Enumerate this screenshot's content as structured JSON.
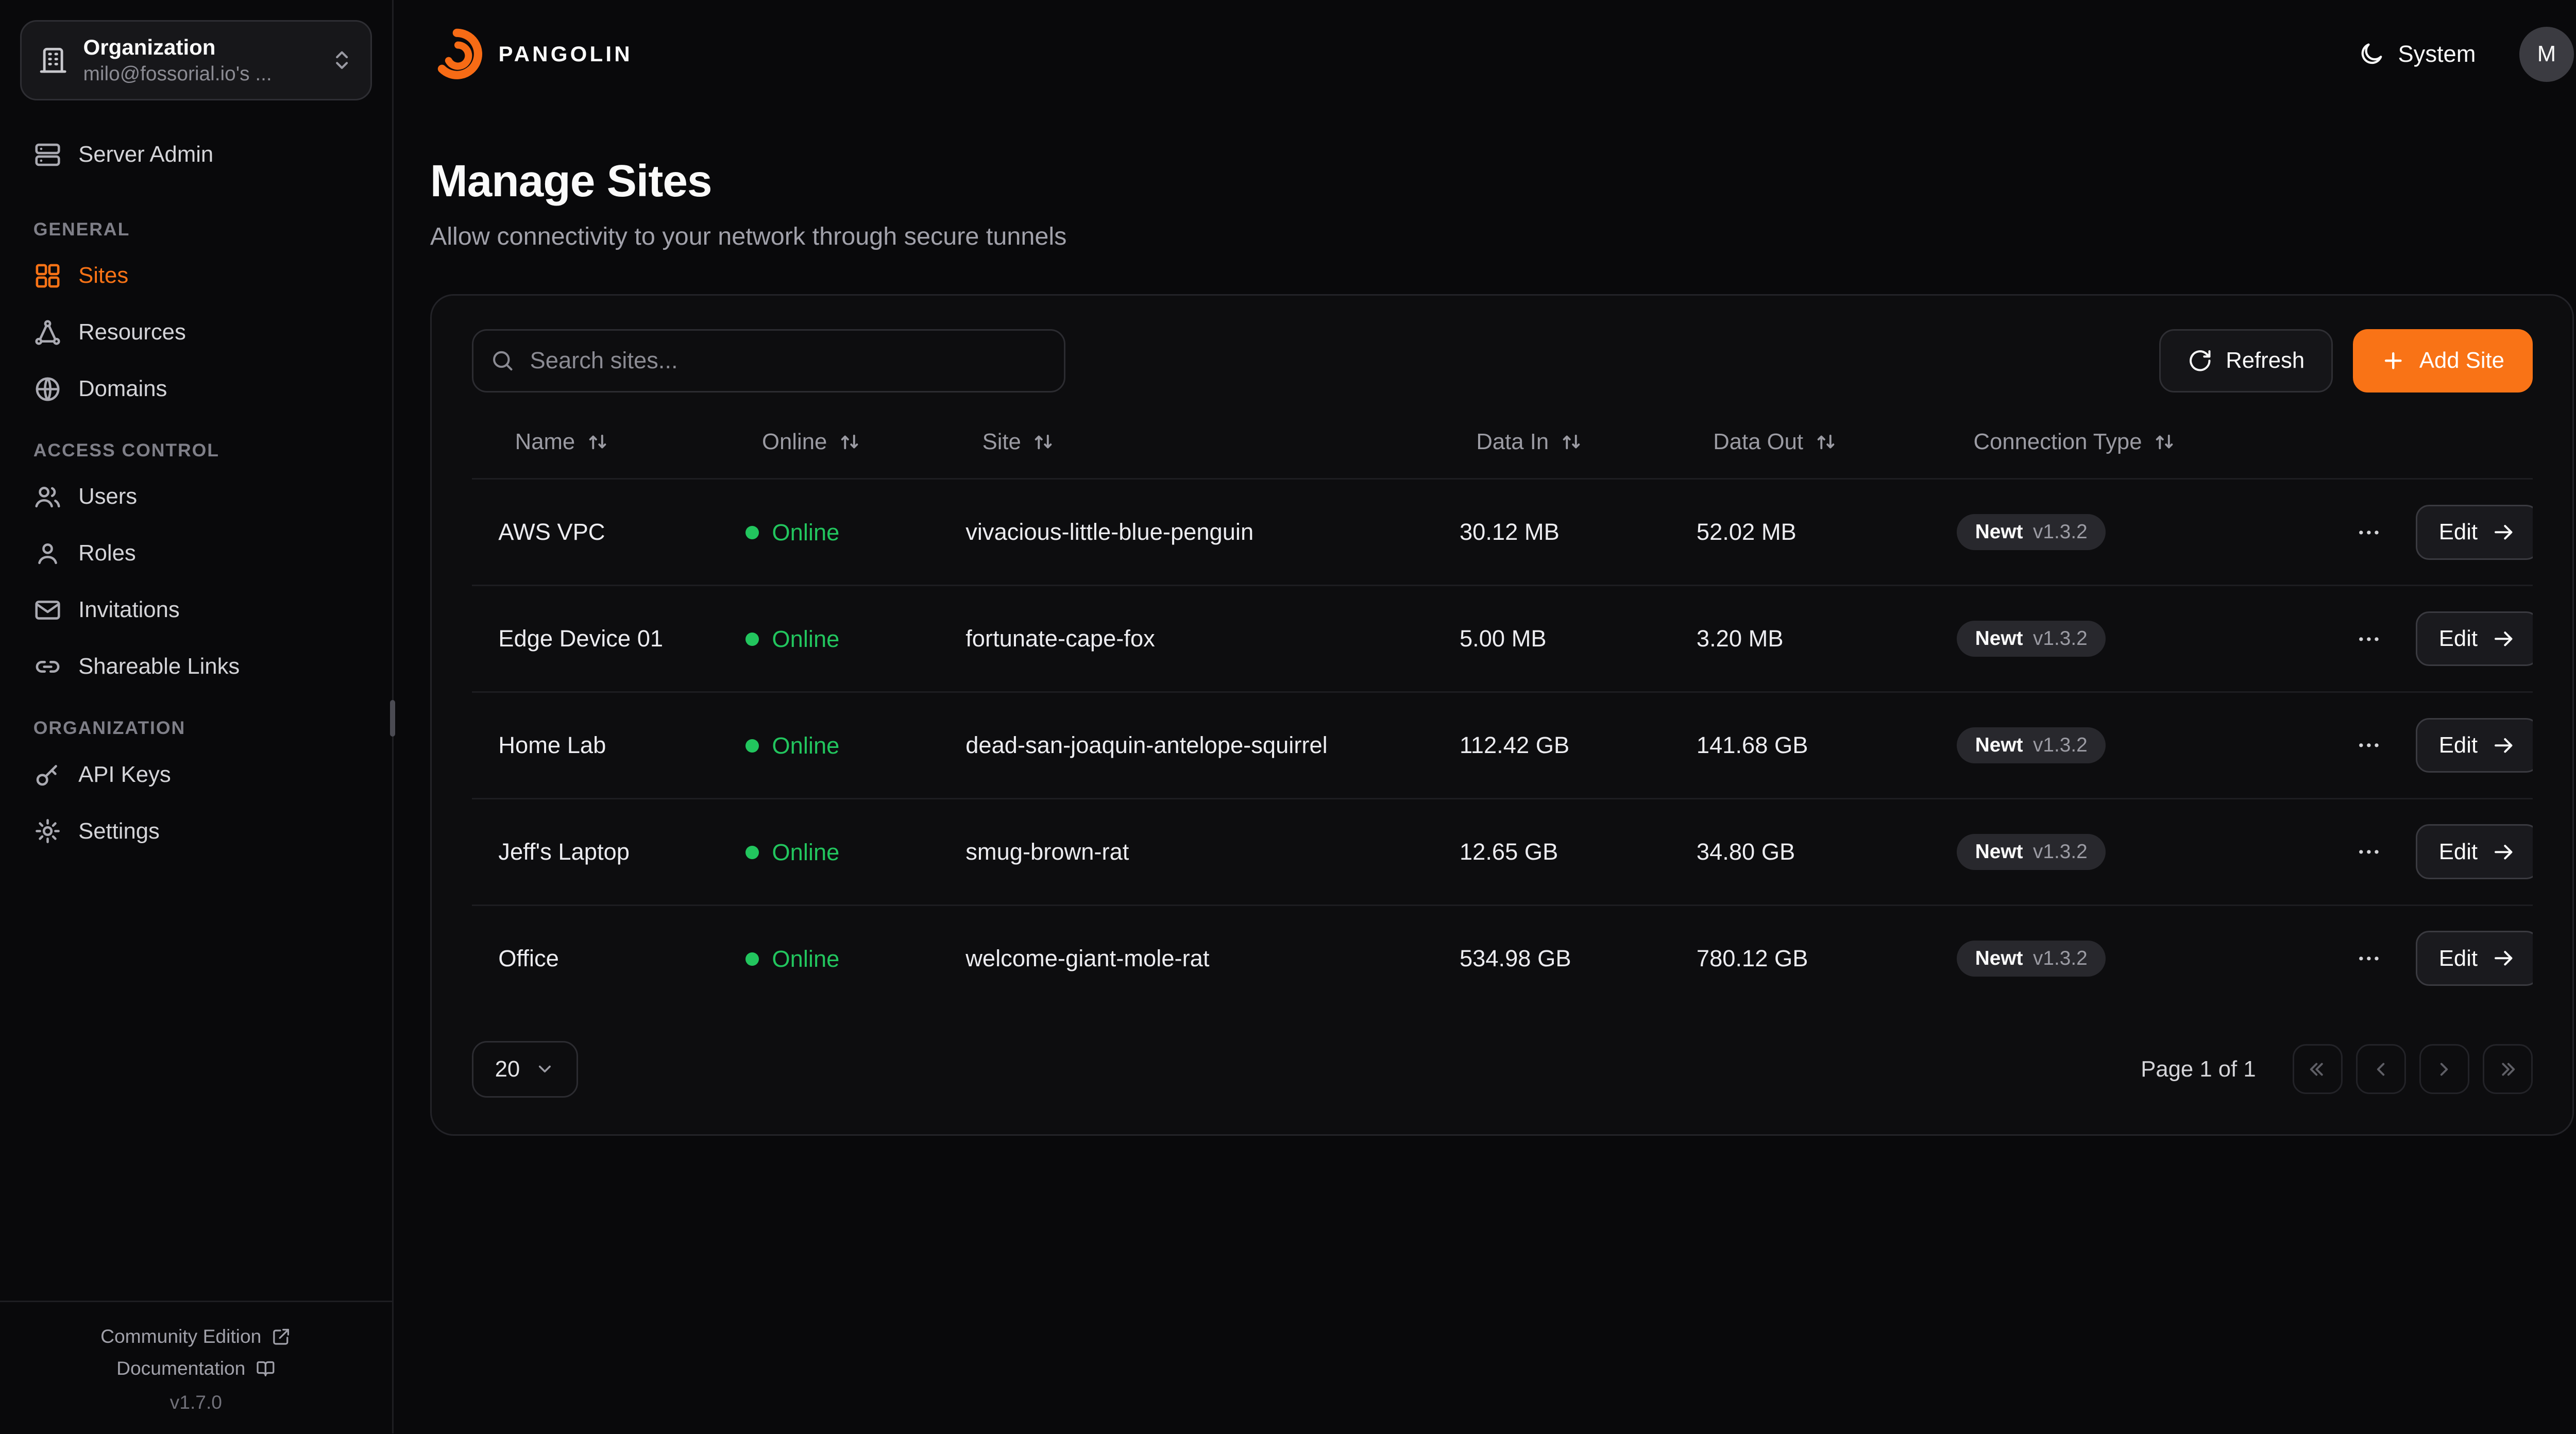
{
  "brand": {
    "name": "PANGOLIN"
  },
  "org_picker": {
    "title": "Organization",
    "subtitle": "milo@fossorial.io's ..."
  },
  "sidebar": {
    "server_admin": "Server Admin",
    "sections": [
      {
        "label": "GENERAL",
        "items": [
          {
            "label": "Sites",
            "icon": "grid-icon",
            "active": true
          },
          {
            "label": "Resources",
            "icon": "waypoints-icon",
            "active": false
          },
          {
            "label": "Domains",
            "icon": "globe-icon",
            "active": false
          }
        ]
      },
      {
        "label": "ACCESS CONTROL",
        "items": [
          {
            "label": "Users",
            "icon": "users-icon",
            "active": false
          },
          {
            "label": "Roles",
            "icon": "user-icon",
            "active": false
          },
          {
            "label": "Invitations",
            "icon": "mail-icon",
            "active": false
          },
          {
            "label": "Shareable Links",
            "icon": "link-icon",
            "active": false
          }
        ]
      },
      {
        "label": "ORGANIZATION",
        "items": [
          {
            "label": "API Keys",
            "icon": "key-icon",
            "active": false
          },
          {
            "label": "Settings",
            "icon": "gear-icon",
            "active": false
          }
        ]
      }
    ],
    "footer": {
      "community_edition": "Community Edition",
      "documentation": "Documentation",
      "version": "v1.7.0"
    }
  },
  "header": {
    "theme": "System",
    "avatar": "M"
  },
  "page": {
    "title": "Manage Sites",
    "subtitle": "Allow connectivity to your network through secure tunnels"
  },
  "toolbar": {
    "search_placeholder": "Search sites...",
    "refresh": "Refresh",
    "add_site": "Add Site"
  },
  "table": {
    "columns": [
      "Name",
      "Online",
      "Site",
      "Data In",
      "Data Out",
      "Connection Type"
    ],
    "edit_label": "Edit",
    "rows": [
      {
        "name": "AWS VPC",
        "status": "Online",
        "site": "vivacious-little-blue-penguin",
        "data_in": "30.12 MB",
        "data_out": "52.02 MB",
        "conn": "Newt",
        "ver": "v1.3.2"
      },
      {
        "name": "Edge Device 01",
        "status": "Online",
        "site": "fortunate-cape-fox",
        "data_in": "5.00 MB",
        "data_out": "3.20 MB",
        "conn": "Newt",
        "ver": "v1.3.2"
      },
      {
        "name": "Home Lab",
        "status": "Online",
        "site": "dead-san-joaquin-antelope-squirrel",
        "data_in": "112.42 GB",
        "data_out": "141.68 GB",
        "conn": "Newt",
        "ver": "v1.3.2"
      },
      {
        "name": "Jeff's Laptop",
        "status": "Online",
        "site": "smug-brown-rat",
        "data_in": "12.65 GB",
        "data_out": "34.80 GB",
        "conn": "Newt",
        "ver": "v1.3.2"
      },
      {
        "name": "Office",
        "status": "Online",
        "site": "welcome-giant-mole-rat",
        "data_in": "534.98 GB",
        "data_out": "780.12 GB",
        "conn": "Newt",
        "ver": "v1.3.2"
      }
    ]
  },
  "pagination": {
    "page_size": "20",
    "info": "Page 1 of 1"
  },
  "colors": {
    "accent": "#F97316",
    "online_green": "#22C55E",
    "background": "#09090B"
  }
}
